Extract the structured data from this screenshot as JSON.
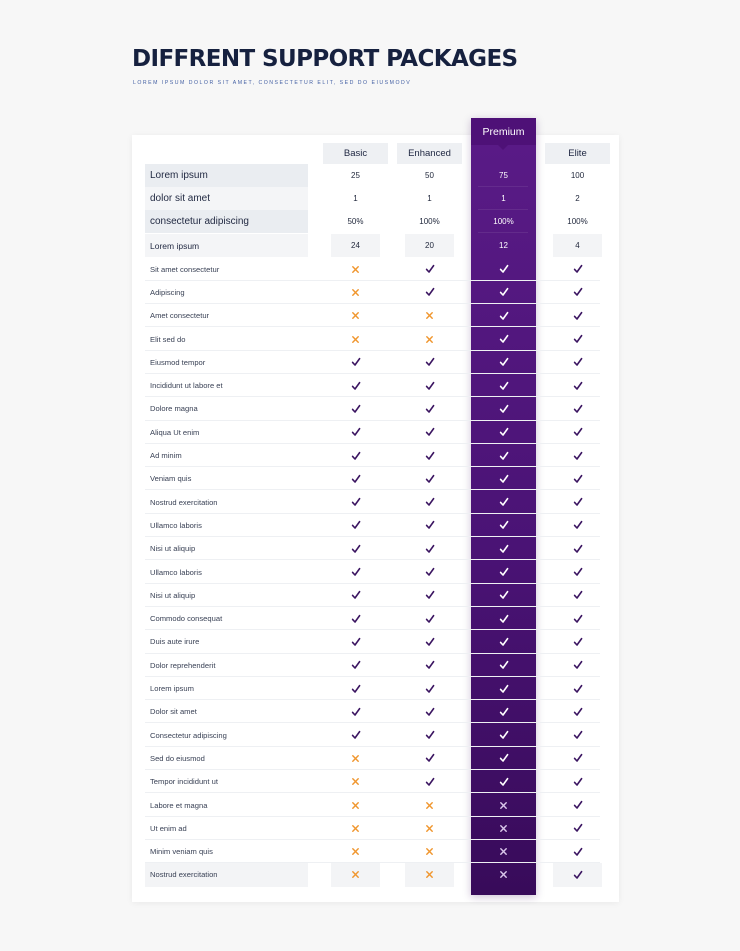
{
  "title": "DIFFRENT SUPPORT PACKAGES",
  "subtitle": "LOREM IPSUM DOLOR SIT AMET, CONSECTETUR ELIT, SED DO EIUSMODV",
  "plans": [
    "Basic",
    "Enhanced",
    "Premium",
    "Elite"
  ],
  "colors": {
    "premium": "#4e1177",
    "check": "#3b1561",
    "cross": "#f0962e",
    "premium_cross": "#d9c6ea",
    "title": "#16213f"
  },
  "metric_rows": [
    {
      "label": "Lorem ipsum",
      "values": [
        "25",
        "50",
        "75",
        "100"
      ]
    },
    {
      "label": "dolor sit amet",
      "values": [
        "1",
        "1",
        "1",
        "2"
      ]
    },
    {
      "label": "consectetur adipiscing",
      "values": [
        "50%",
        "100%",
        "100%",
        "100%"
      ]
    },
    {
      "label": "Lorem ipsum",
      "values": [
        "24",
        "20",
        "12",
        "4"
      ]
    }
  ],
  "feature_rows": [
    {
      "label": "Sit amet  consectetur",
      "values": [
        "cross",
        "check",
        "check",
        "check"
      ]
    },
    {
      "label": "Adipiscing",
      "values": [
        "cross",
        "check",
        "check",
        "check"
      ]
    },
    {
      "label": "Amet consectetur",
      "values": [
        "cross",
        "cross",
        "check",
        "check"
      ]
    },
    {
      "label": "Elit sed do",
      "values": [
        "cross",
        "cross",
        "check",
        "check"
      ]
    },
    {
      "label": "Eiusmod tempor",
      "values": [
        "check",
        "check",
        "check",
        "check"
      ]
    },
    {
      "label": "Incididunt ut labore et",
      "values": [
        "check",
        "check",
        "check",
        "check"
      ]
    },
    {
      "label": "Dolore magna",
      "values": [
        "check",
        "check",
        "check",
        "check"
      ]
    },
    {
      "label": "Aliqua Ut enim",
      "values": [
        "check",
        "check",
        "check",
        "check"
      ]
    },
    {
      "label": "Ad minim",
      "values": [
        "check",
        "check",
        "check",
        "check"
      ]
    },
    {
      "label": "Veniam quis",
      "values": [
        "check",
        "check",
        "check",
        "check"
      ]
    },
    {
      "label": "Nostrud exercitation",
      "values": [
        "check",
        "check",
        "check",
        "check"
      ]
    },
    {
      "label": "Ullamco laboris",
      "values": [
        "check",
        "check",
        "check",
        "check"
      ]
    },
    {
      "label": "Nisi ut aliquip",
      "values": [
        "check",
        "check",
        "check",
        "check"
      ]
    },
    {
      "label": "Ullamco laboris",
      "values": [
        "check",
        "check",
        "check",
        "check"
      ]
    },
    {
      "label": "Nisi ut aliquip",
      "values": [
        "check",
        "check",
        "check",
        "check"
      ]
    },
    {
      "label": "Commodo consequat",
      "values": [
        "check",
        "check",
        "check",
        "check"
      ]
    },
    {
      "label": "Duis aute irure",
      "values": [
        "check",
        "check",
        "check",
        "check"
      ]
    },
    {
      "label": "Dolor reprehenderit",
      "values": [
        "check",
        "check",
        "check",
        "check"
      ]
    },
    {
      "label": "Lorem ipsum",
      "values": [
        "check",
        "check",
        "check",
        "check"
      ]
    },
    {
      "label": "Dolor sit amet",
      "values": [
        "check",
        "check",
        "check",
        "check"
      ]
    },
    {
      "label": "Consectetur adipiscing",
      "values": [
        "check",
        "check",
        "check",
        "check"
      ]
    },
    {
      "label": "Sed do eiusmod",
      "values": [
        "cross",
        "check",
        "check",
        "check"
      ]
    },
    {
      "label": "Tempor incididunt ut",
      "values": [
        "cross",
        "check",
        "check",
        "check"
      ]
    },
    {
      "label": "Labore et magna",
      "values": [
        "cross",
        "cross",
        "cross",
        "check"
      ]
    },
    {
      "label": "Ut enim ad",
      "values": [
        "cross",
        "cross",
        "cross",
        "check"
      ]
    },
    {
      "label": "Minim veniam quis",
      "values": [
        "cross",
        "cross",
        "cross",
        "check"
      ]
    },
    {
      "label": "Nostrud exercitation",
      "values": [
        "cross",
        "cross",
        "cross",
        "check"
      ]
    }
  ]
}
